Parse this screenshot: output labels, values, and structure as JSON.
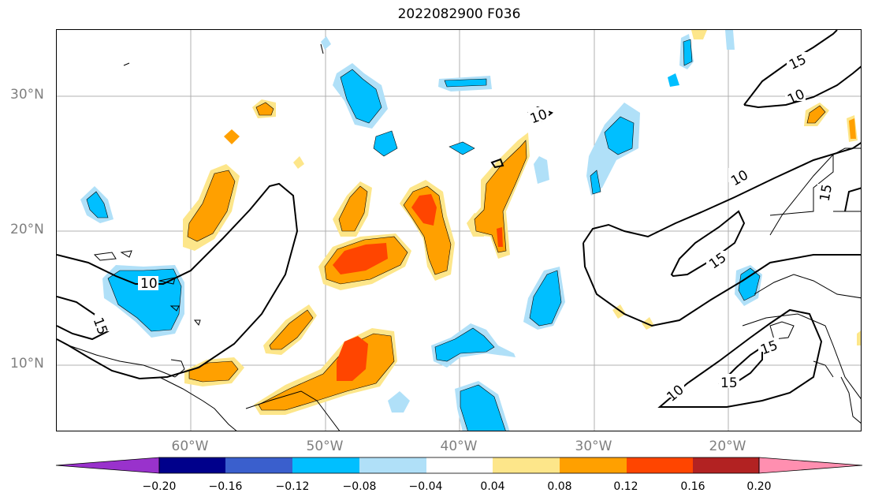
{
  "title": "2022082900 F036",
  "map": {
    "lat_ticks": [
      "30°N",
      "20°N",
      "10°N"
    ],
    "lon_ticks": [
      "60°W",
      "50°W",
      "40°W",
      "30°W",
      "20°W"
    ],
    "contour_labels": [
      "10",
      "15",
      "10",
      "15",
      "10",
      "10",
      "15",
      "15",
      "10",
      "15",
      "15"
    ],
    "positive_color": "#ffa000",
    "negative_color": "#00bfff"
  },
  "colorbar": {
    "ticks": [
      "−0.20",
      "−0.16",
      "−0.12",
      "−0.08",
      "−0.04",
      "0.04",
      "0.08",
      "0.12",
      "0.16",
      "0.20"
    ],
    "colors": [
      "#9932cc",
      "#00008b",
      "#3a5fcd",
      "#00bfff",
      "#b0e0f8",
      "#ffffff",
      "#fde68a",
      "#ffa000",
      "#ff4500",
      "#b22222",
      "#ff8fb0"
    ]
  }
}
